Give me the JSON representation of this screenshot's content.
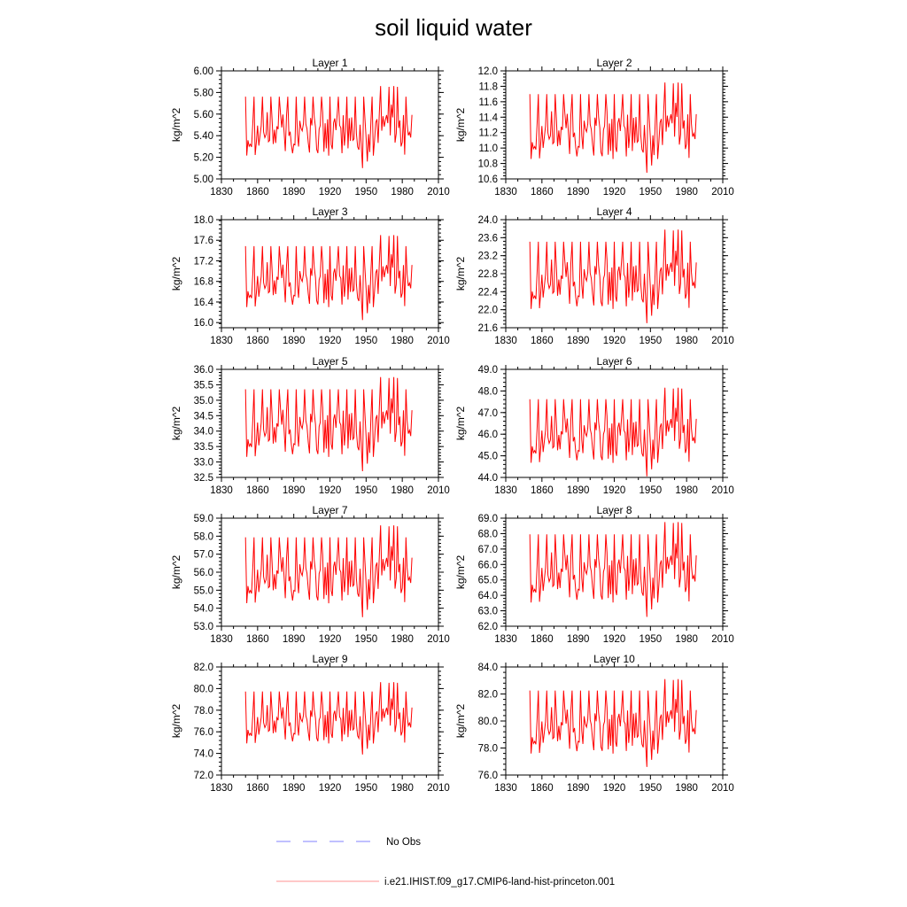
{
  "title": "soil liquid water",
  "legend": [
    {
      "label": "No Obs",
      "style": "dashed",
      "color": "#8080ff"
    },
    {
      "label": "i.e21.IHIST.f09_g17.CMIP6-land-hist-princeton.001",
      "style": "solid",
      "color": "#ff9090"
    }
  ],
  "chart_data": [
    {
      "type": "line",
      "title": "Layer 1",
      "ylabel": "kg/m^2",
      "xlim": [
        1830,
        2010
      ],
      "ylim": [
        5.0,
        6.0
      ],
      "x_ticks": [
        "1830",
        "1860",
        "1890",
        "1920",
        "1950",
        "1980",
        "2010"
      ],
      "y_ticks": [
        "5.00",
        "5.20",
        "5.40",
        "5.60",
        "5.80",
        "6.00"
      ],
      "y_minor": 0.04,
      "series": [
        {
          "name": "i.e21.IHIST.f09_g17.CMIP6-land-hist-princeton.001",
          "color": "#ff0000",
          "x_start": 1850,
          "x_end": 1988,
          "min": 5.1,
          "max": 5.86
        }
      ]
    },
    {
      "type": "line",
      "title": "Layer 2",
      "ylabel": "kg/m^2",
      "xlim": [
        1830,
        2010
      ],
      "ylim": [
        10.6,
        12.0
      ],
      "x_ticks": [
        "1830",
        "1860",
        "1890",
        "1920",
        "1950",
        "1980",
        "2010"
      ],
      "y_ticks": [
        "10.6",
        "10.8",
        "11.0",
        "11.2",
        "11.4",
        "11.6",
        "11.8",
        "12.0"
      ],
      "y_minor": 0.04,
      "series": [
        {
          "name": "i.e21.IHIST.f09_g17.CMIP6-land-hist-princeton.001",
          "color": "#ff0000",
          "x_start": 1850,
          "x_end": 1988,
          "min": 10.68,
          "max": 11.85
        }
      ]
    },
    {
      "type": "line",
      "title": "Layer 3",
      "ylabel": "kg/m^2",
      "xlim": [
        1830,
        2010
      ],
      "ylim": [
        15.9,
        18.0
      ],
      "x_ticks": [
        "1830",
        "1860",
        "1890",
        "1920",
        "1950",
        "1980",
        "2010"
      ],
      "y_ticks": [
        "16.0",
        "16.4",
        "16.8",
        "17.2",
        "17.6",
        "18.0"
      ],
      "y_minor": 0.08,
      "series": [
        {
          "name": "i.e21.IHIST.f09_g17.CMIP6-land-hist-princeton.001",
          "color": "#ff0000",
          "x_start": 1850,
          "x_end": 1988,
          "min": 16.05,
          "max": 17.7
        }
      ]
    },
    {
      "type": "line",
      "title": "Layer 4",
      "ylabel": "kg/m^2",
      "xlim": [
        1830,
        2010
      ],
      "ylim": [
        21.6,
        24.0
      ],
      "x_ticks": [
        "1830",
        "1860",
        "1890",
        "1920",
        "1950",
        "1980",
        "2010"
      ],
      "y_ticks": [
        "21.6",
        "22.0",
        "22.4",
        "22.8",
        "23.2",
        "23.6",
        "24.0"
      ],
      "y_minor": 0.08,
      "series": [
        {
          "name": "i.e21.IHIST.f09_g17.CMIP6-land-hist-princeton.001",
          "color": "#ff0000",
          "x_start": 1850,
          "x_end": 1988,
          "min": 21.7,
          "max": 23.78
        }
      ]
    },
    {
      "type": "line",
      "title": "Layer 5",
      "ylabel": "kg/m^2",
      "xlim": [
        1830,
        2010
      ],
      "ylim": [
        32.5,
        36.0
      ],
      "x_ticks": [
        "1830",
        "1860",
        "1890",
        "1920",
        "1950",
        "1980",
        "2010"
      ],
      "y_ticks": [
        "32.5",
        "33.0",
        "33.5",
        "34.0",
        "34.5",
        "35.0",
        "35.5",
        "36.0"
      ],
      "y_minor": 0.1,
      "series": [
        {
          "name": "i.e21.IHIST.f09_g17.CMIP6-land-hist-princeton.001",
          "color": "#ff0000",
          "x_start": 1850,
          "x_end": 1988,
          "min": 32.7,
          "max": 35.75
        }
      ]
    },
    {
      "type": "line",
      "title": "Layer 6",
      "ylabel": "kg/m^2",
      "xlim": [
        1830,
        2010
      ],
      "ylim": [
        44.0,
        49.0
      ],
      "x_ticks": [
        "1830",
        "1860",
        "1890",
        "1920",
        "1950",
        "1980",
        "2010"
      ],
      "y_ticks": [
        "44.0",
        "45.0",
        "46.0",
        "47.0",
        "48.0",
        "49.0"
      ],
      "y_minor": 0.2,
      "series": [
        {
          "name": "i.e21.IHIST.f09_g17.CMIP6-land-hist-princeton.001",
          "color": "#ff0000",
          "x_start": 1850,
          "x_end": 1988,
          "min": 44.05,
          "max": 48.15
        }
      ]
    },
    {
      "type": "line",
      "title": "Layer 7",
      "ylabel": "kg/m^2",
      "xlim": [
        1830,
        2010
      ],
      "ylim": [
        53.0,
        59.0
      ],
      "x_ticks": [
        "1830",
        "1860",
        "1890",
        "1920",
        "1950",
        "1980",
        "2010"
      ],
      "y_ticks": [
        "53.0",
        "54.0",
        "55.0",
        "56.0",
        "57.0",
        "58.0",
        "59.0"
      ],
      "y_minor": 0.2,
      "series": [
        {
          "name": "i.e21.IHIST.f09_g17.CMIP6-land-hist-princeton.001",
          "color": "#ff0000",
          "x_start": 1850,
          "x_end": 1988,
          "min": 53.5,
          "max": 58.6
        }
      ]
    },
    {
      "type": "line",
      "title": "Layer 8",
      "ylabel": "kg/m^2",
      "xlim": [
        1830,
        2010
      ],
      "ylim": [
        62.0,
        69.0
      ],
      "x_ticks": [
        "1830",
        "1860",
        "1890",
        "1920",
        "1950",
        "1980",
        "2010"
      ],
      "y_ticks": [
        "62.0",
        "63.0",
        "64.0",
        "65.0",
        "66.0",
        "67.0",
        "68.0",
        "69.0"
      ],
      "y_minor": 0.2,
      "series": [
        {
          "name": "i.e21.IHIST.f09_g17.CMIP6-land-hist-princeton.001",
          "color": "#ff0000",
          "x_start": 1850,
          "x_end": 1988,
          "min": 62.6,
          "max": 68.75
        }
      ]
    },
    {
      "type": "line",
      "title": "Layer 9",
      "ylabel": "kg/m^2",
      "xlim": [
        1830,
        2010
      ],
      "ylim": [
        72.0,
        82.0
      ],
      "x_ticks": [
        "1830",
        "1860",
        "1890",
        "1920",
        "1950",
        "1980",
        "2010"
      ],
      "y_ticks": [
        "72.0",
        "74.0",
        "76.0",
        "78.0",
        "80.0",
        "82.0"
      ],
      "y_minor": 0.4,
      "series": [
        {
          "name": "i.e21.IHIST.f09_g17.CMIP6-land-hist-princeton.001",
          "color": "#ff0000",
          "x_start": 1850,
          "x_end": 1988,
          "min": 73.9,
          "max": 80.6
        }
      ]
    },
    {
      "type": "line",
      "title": "Layer 10",
      "ylabel": "kg/m^2",
      "xlim": [
        1830,
        2010
      ],
      "ylim": [
        76.0,
        84.0
      ],
      "x_ticks": [
        "1830",
        "1860",
        "1890",
        "1920",
        "1950",
        "1980",
        "2010"
      ],
      "y_ticks": [
        "76.0",
        "78.0",
        "80.0",
        "82.0",
        "84.0"
      ],
      "y_minor": 0.4,
      "series": [
        {
          "name": "i.e21.IHIST.f09_g17.CMIP6-land-hist-princeton.001",
          "color": "#ff0000",
          "x_start": 1850,
          "x_end": 1988,
          "min": 76.6,
          "max": 83.1
        }
      ]
    }
  ]
}
